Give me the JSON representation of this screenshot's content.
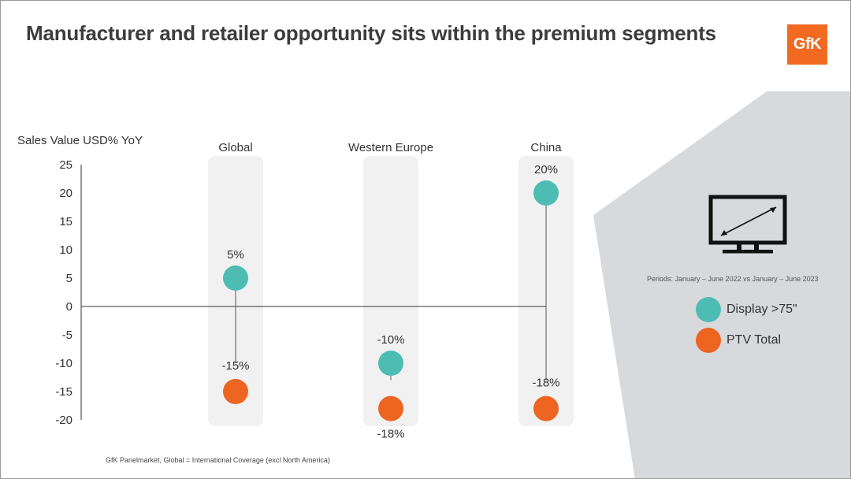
{
  "title": "Manufacturer and retailer opportunity sits within the premium segments",
  "logo_text": "GfK",
  "footnote": "GfK Panelmarket, Global = International Coverage (excl North America)",
  "periods": "Periods: January – June 2022 vs January – June 2023",
  "icon": "tv-screen-size-icon",
  "colors": {
    "display": "#4dbdb4",
    "ptv": "#ee6421",
    "column_bg": "#f1f1f1",
    "panel_bg": "#d7d9dc",
    "brand": "#f26a21"
  },
  "legend": [
    {
      "label": "Display >75\"",
      "color": "#4dbdb4"
    },
    {
      "label": "PTV Total",
      "color": "#ee6421"
    }
  ],
  "chart_data": {
    "type": "scatter",
    "ylabel": "Sales Value USD% YoY",
    "ylim": [
      -20,
      25
    ],
    "yticks": [
      25,
      20,
      15,
      10,
      5,
      0,
      -5,
      -10,
      -15,
      -20
    ],
    "categories": [
      "Global",
      "Western Europe",
      "China"
    ],
    "series": [
      {
        "name": "Display >75\"",
        "values": [
          5,
          -10,
          20
        ],
        "labels": [
          "5%",
          "-10%",
          "20%"
        ]
      },
      {
        "name": "PTV Total",
        "values": [
          -15,
          -18,
          -18
        ],
        "labels": [
          "-15%",
          "-18%",
          "-18%"
        ]
      }
    ],
    "grid": false,
    "legend_position": "right"
  }
}
